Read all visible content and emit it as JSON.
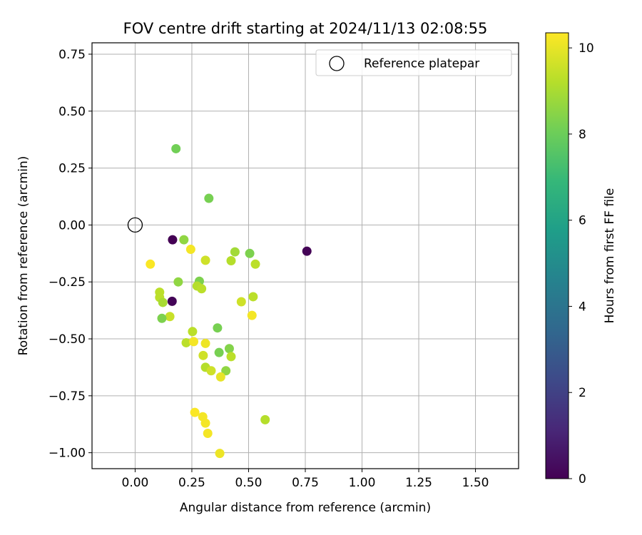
{
  "chart_data": {
    "type": "scatter",
    "title": "FOV centre drift starting at 2024/11/13 02:08:55",
    "xlabel": "Angular distance from reference (arcmin)",
    "ylabel": "Rotation from reference (arcmin)",
    "xlim": [
      -0.19,
      1.69
    ],
    "ylim": [
      -1.07,
      0.8
    ],
    "xticks": [
      0.0,
      0.25,
      0.5,
      0.75,
      1.0,
      1.25,
      1.5
    ],
    "xtick_labels": [
      "0.00",
      "0.25",
      "0.50",
      "0.75",
      "1.00",
      "1.25",
      "1.50"
    ],
    "yticks": [
      0.75,
      0.5,
      0.25,
      0.0,
      -0.25,
      -0.5,
      -0.75,
      -1.0
    ],
    "ytick_labels": [
      "0.75",
      "0.50",
      "0.25",
      "0.00",
      "−0.25",
      "−0.50",
      "−0.75",
      "−1.00"
    ],
    "grid": true,
    "legend": {
      "position": "upper right",
      "label": "Reference platepar"
    },
    "colorbar": {
      "label": "Hours from first FF file",
      "min": 0,
      "max": 10.35,
      "ticks": [
        0,
        2,
        4,
        6,
        8,
        10
      ],
      "tick_labels": [
        "0",
        "2",
        "4",
        "6",
        "8",
        "10"
      ],
      "colormap": "viridis"
    },
    "reference_point": {
      "x": 0.0,
      "y": 0.0
    },
    "points": [
      {
        "x": 0.165,
        "y": -0.065,
        "hours": 0.0
      },
      {
        "x": 0.757,
        "y": -0.115,
        "hours": 0.05
      },
      {
        "x": 0.163,
        "y": -0.335,
        "hours": 0.1
      },
      {
        "x": 0.18,
        "y": 0.335,
        "hours": 8.1
      },
      {
        "x": 0.325,
        "y": 0.117,
        "hours": 8.2
      },
      {
        "x": 0.215,
        "y": -0.065,
        "hours": 8.6
      },
      {
        "x": 0.44,
        "y": -0.118,
        "hours": 8.9
      },
      {
        "x": 0.505,
        "y": -0.125,
        "hours": 8.3
      },
      {
        "x": 0.245,
        "y": -0.107,
        "hours": 10.2
      },
      {
        "x": 0.31,
        "y": -0.155,
        "hours": 9.6
      },
      {
        "x": 0.423,
        "y": -0.157,
        "hours": 9.2
      },
      {
        "x": 0.53,
        "y": -0.172,
        "hours": 9.3
      },
      {
        "x": 0.067,
        "y": -0.172,
        "hours": 10.3
      },
      {
        "x": 0.19,
        "y": -0.25,
        "hours": 8.6
      },
      {
        "x": 0.283,
        "y": -0.247,
        "hours": 8.3
      },
      {
        "x": 0.273,
        "y": -0.268,
        "hours": 9.2
      },
      {
        "x": 0.293,
        "y": -0.28,
        "hours": 9.3
      },
      {
        "x": 0.108,
        "y": -0.295,
        "hours": 9.3
      },
      {
        "x": 0.108,
        "y": -0.318,
        "hours": 9.3
      },
      {
        "x": 0.122,
        "y": -0.34,
        "hours": 9.0
      },
      {
        "x": 0.52,
        "y": -0.315,
        "hours": 9.3
      },
      {
        "x": 0.468,
        "y": -0.337,
        "hours": 9.6
      },
      {
        "x": 0.515,
        "y": -0.397,
        "hours": 10.2
      },
      {
        "x": 0.153,
        "y": -0.402,
        "hours": 9.5
      },
      {
        "x": 0.118,
        "y": -0.41,
        "hours": 8.3
      },
      {
        "x": 0.363,
        "y": -0.452,
        "hours": 8.2
      },
      {
        "x": 0.253,
        "y": -0.468,
        "hours": 9.3
      },
      {
        "x": 0.225,
        "y": -0.517,
        "hours": 9.3
      },
      {
        "x": 0.258,
        "y": -0.512,
        "hours": 10.2
      },
      {
        "x": 0.31,
        "y": -0.52,
        "hours": 10.1
      },
      {
        "x": 0.415,
        "y": -0.543,
        "hours": 8.4
      },
      {
        "x": 0.37,
        "y": -0.56,
        "hours": 8.2
      },
      {
        "x": 0.3,
        "y": -0.573,
        "hours": 9.6
      },
      {
        "x": 0.423,
        "y": -0.578,
        "hours": 9.3
      },
      {
        "x": 0.31,
        "y": -0.625,
        "hours": 9.2
      },
      {
        "x": 0.335,
        "y": -0.64,
        "hours": 9.6
      },
      {
        "x": 0.4,
        "y": -0.64,
        "hours": 8.6
      },
      {
        "x": 0.377,
        "y": -0.667,
        "hours": 10.0
      },
      {
        "x": 0.263,
        "y": -0.823,
        "hours": 10.3
      },
      {
        "x": 0.298,
        "y": -0.842,
        "hours": 10.2
      },
      {
        "x": 0.31,
        "y": -0.87,
        "hours": 10.2
      },
      {
        "x": 0.573,
        "y": -0.855,
        "hours": 9.2
      },
      {
        "x": 0.32,
        "y": -0.915,
        "hours": 10.2
      },
      {
        "x": 0.373,
        "y": -1.003,
        "hours": 10.1
      }
    ]
  }
}
